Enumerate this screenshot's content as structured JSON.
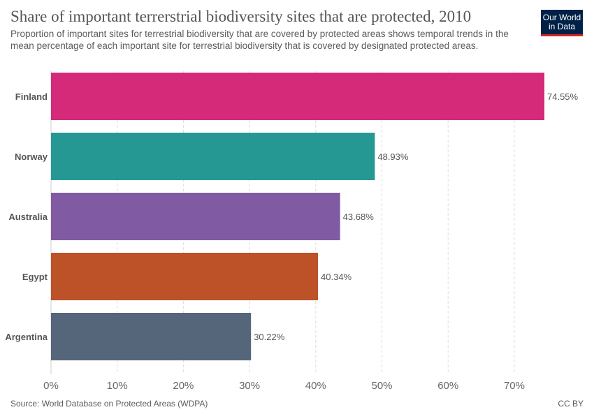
{
  "title": "Share of important terrerstrial biodiversity sites that are protected, 2010",
  "subtitle": "Proportion of important sites for terrestrial biodiversity that are covered by protected areas shows temporal trends in the mean percentage of each important site for terrestrial biodiversity that is covered by designated protected areas.",
  "logo": {
    "line1": "Our World",
    "line2": "in Data",
    "bg_color": "#002147",
    "accent_color": "#ce261e"
  },
  "footer": {
    "source": "Source: World Database on Protected Areas (WDPA)",
    "license": "CC BY"
  },
  "chart_data": {
    "type": "bar",
    "orientation": "horizontal",
    "categories": [
      "Finland",
      "Norway",
      "Australia",
      "Egypt",
      "Argentina"
    ],
    "values": [
      74.55,
      48.93,
      43.68,
      40.34,
      30.22
    ],
    "value_labels": [
      "74.55%",
      "48.93%",
      "43.68%",
      "40.34%",
      "30.22%"
    ],
    "colors": [
      "#d42a79",
      "#259893",
      "#805aa3",
      "#bd5128",
      "#56667a"
    ],
    "xlim": [
      0,
      74.55
    ],
    "xticks": [
      0,
      10,
      20,
      30,
      40,
      50,
      60,
      70
    ],
    "xtick_labels": [
      "0%",
      "10%",
      "20%",
      "30%",
      "40%",
      "50%",
      "60%",
      "70%"
    ],
    "grid": "vertical dashed",
    "legend": "none"
  }
}
